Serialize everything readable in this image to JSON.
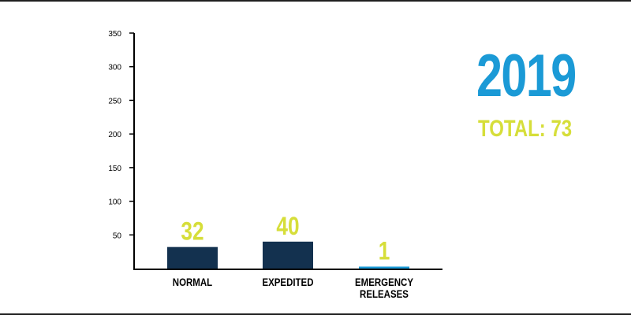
{
  "summary": {
    "year": "2019",
    "total_label": "TOTAL:",
    "total_value": "73"
  },
  "colors": {
    "bar": "#13314f",
    "bar_accent": "#1b9ad6",
    "value_label": "#d6de3a",
    "year": "#1b9ad6",
    "axis": "#000000",
    "text": "#000000"
  },
  "chart_data": {
    "type": "bar",
    "categories": [
      "NORMAL",
      "EXPEDITED",
      "EMERGENCY RELEASES"
    ],
    "category_lines": [
      [
        "NORMAL"
      ],
      [
        "EXPEDITED"
      ],
      [
        "EMERGENCY",
        "RELEASES"
      ]
    ],
    "values": [
      32,
      40,
      1
    ],
    "value_labels": [
      "32",
      "40",
      "1"
    ],
    "ylim": [
      0,
      350
    ],
    "yticks": [
      50,
      100,
      150,
      200,
      250,
      300,
      350
    ],
    "ytick_labels": [
      "50",
      "100",
      "150",
      "200",
      "250",
      "300",
      "350"
    ],
    "title": "",
    "xlabel": "",
    "ylabel": "",
    "grid": false,
    "legend": "none"
  }
}
